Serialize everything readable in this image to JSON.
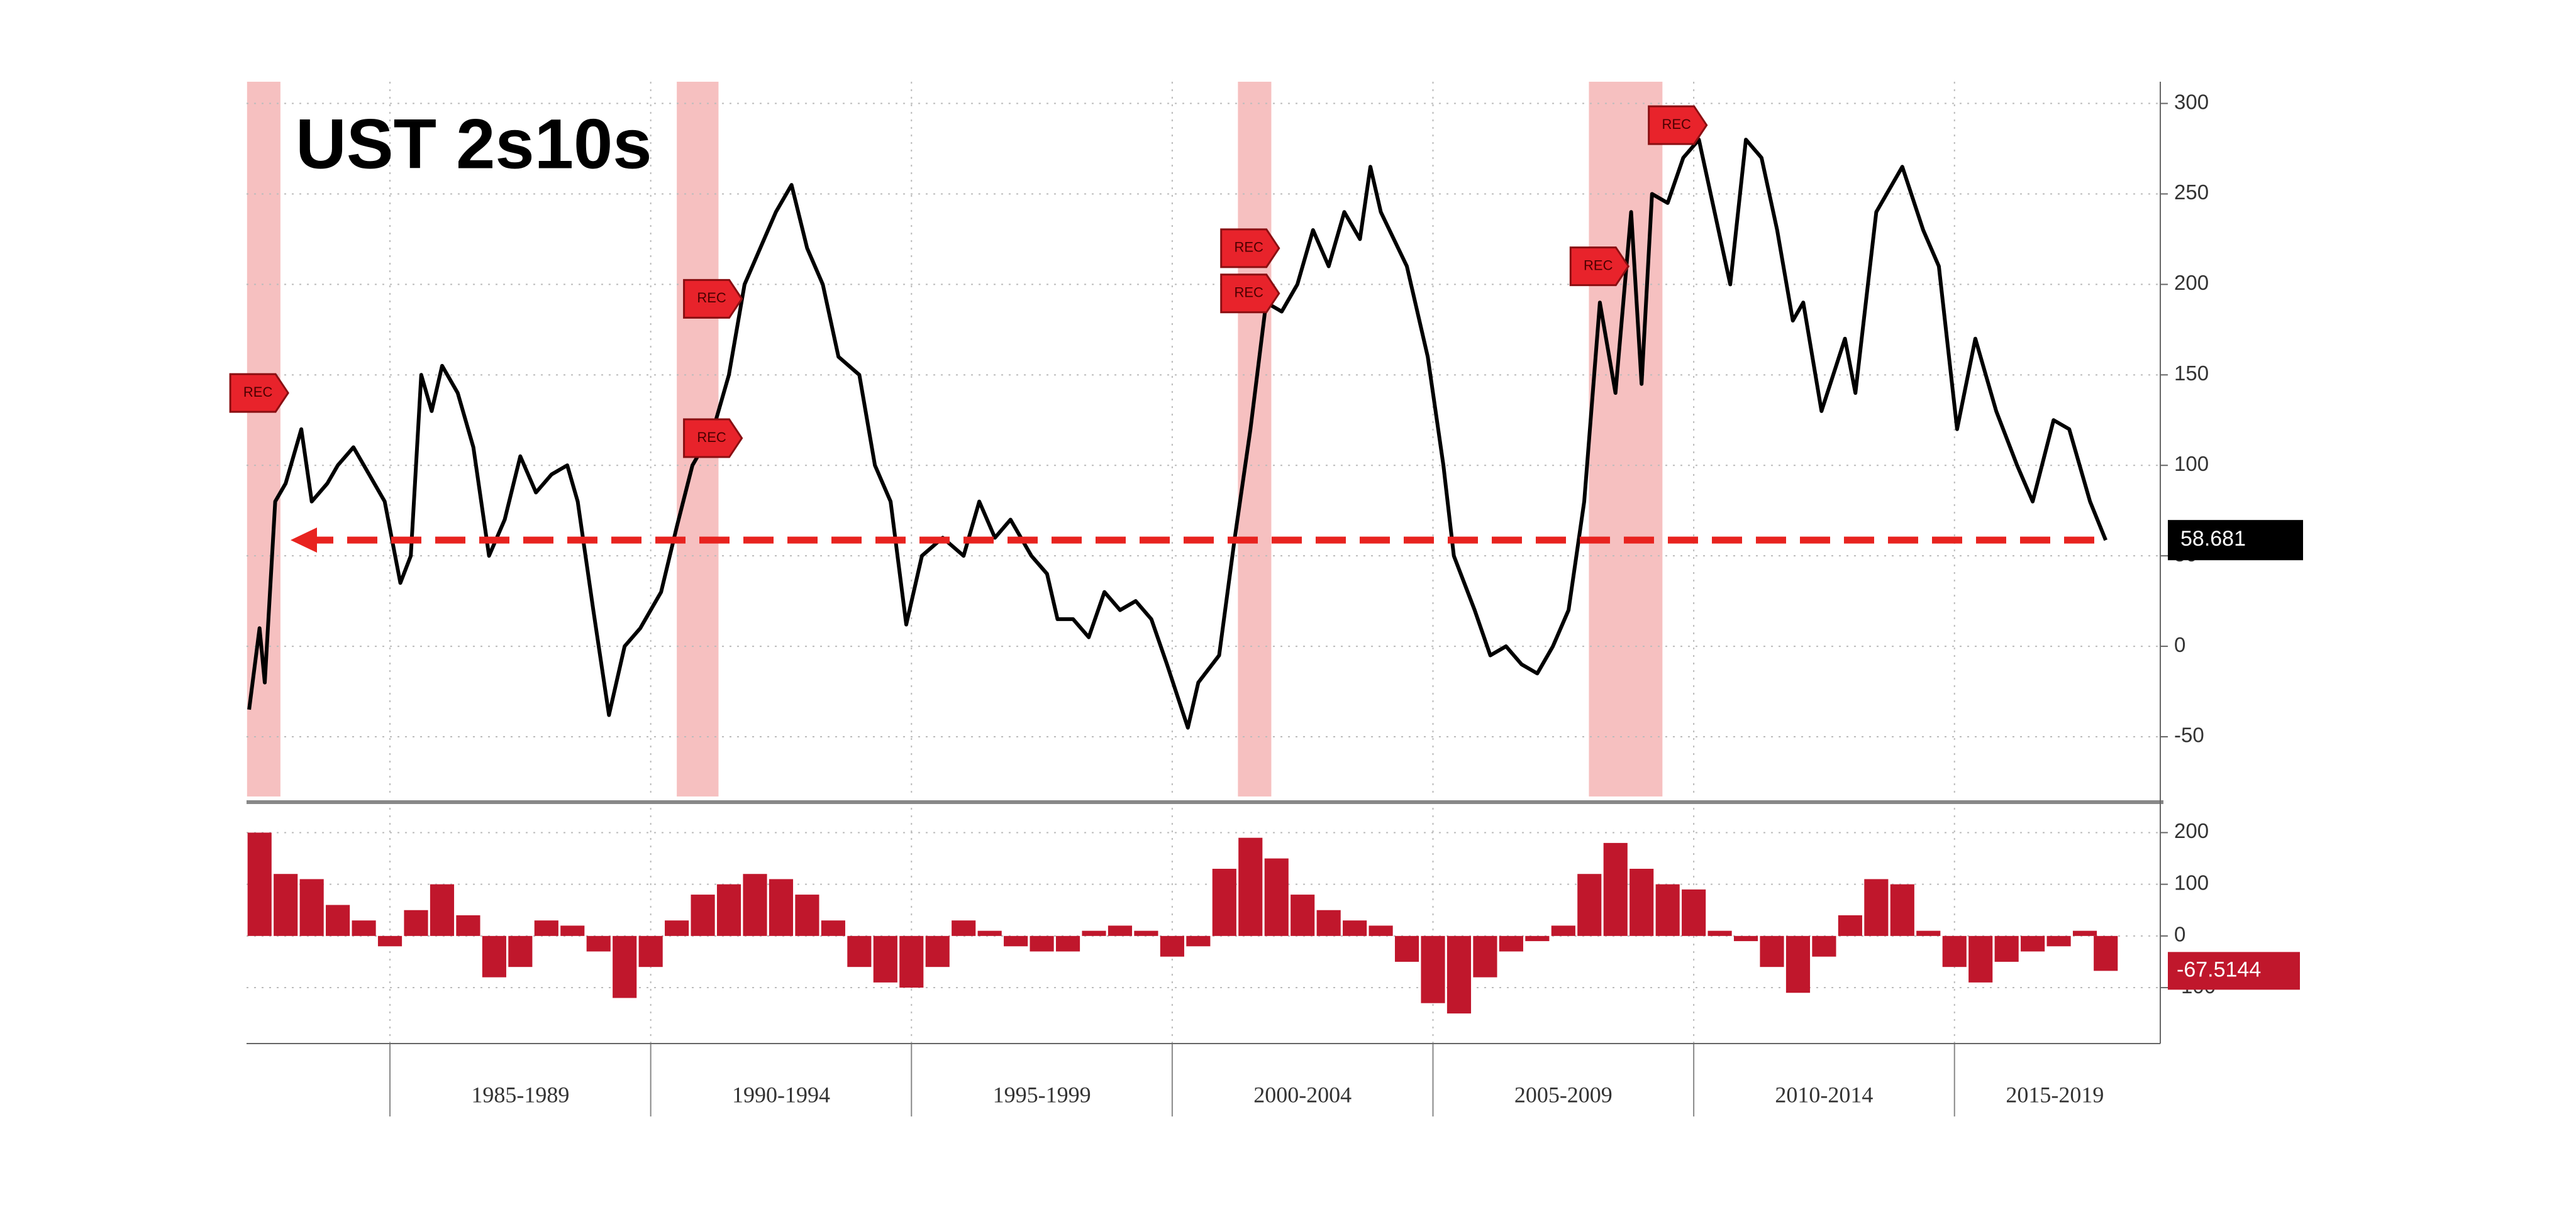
{
  "chart_data": [
    {
      "type": "line",
      "title": "UST 2s10s",
      "color": "#000000",
      "x": [
        1982.3,
        1982.5,
        1982.6,
        1982.8,
        1983.0,
        1983.3,
        1983.5,
        1983.8,
        1984.0,
        1984.3,
        1984.6,
        1984.9,
        1985.2,
        1985.4,
        1985.6,
        1985.8,
        1986.0,
        1986.3,
        1986.6,
        1986.9,
        1987.2,
        1987.5,
        1987.8,
        1988.1,
        1988.4,
        1988.6,
        1988.9,
        1989.2,
        1989.5,
        1989.8,
        1990.2,
        1990.5,
        1990.8,
        1991.2,
        1991.5,
        1991.8,
        1992.1,
        1992.4,
        1992.7,
        1993.0,
        1993.3,
        1993.6,
        1994.0,
        1994.3,
        1994.6,
        1994.9,
        1995.2,
        1995.6,
        1996.0,
        1996.3,
        1996.6,
        1996.9,
        1997.3,
        1997.6,
        1997.8,
        1998.1,
        1998.4,
        1998.7,
        1999.0,
        1999.3,
        1999.6,
        1999.9,
        2000.3,
        2000.5,
        2000.9,
        2001.2,
        2001.5,
        2001.8,
        2002.1,
        2002.4,
        2002.7,
        2003.0,
        2003.3,
        2003.6,
        2003.8,
        2004.0,
        2004.5,
        2004.9,
        2005.2,
        2005.4,
        2005.8,
        2006.1,
        2006.4,
        2006.7,
        2007.0,
        2007.3,
        2007.6,
        2007.9,
        2008.2,
        2008.5,
        2008.8,
        2009.0,
        2009.2,
        2009.5,
        2009.8,
        2010.1,
        2010.4,
        2010.7,
        2011.0,
        2011.3,
        2011.6,
        2011.9,
        2012.1,
        2012.45,
        2012.9,
        2013.1,
        2013.5,
        2014.0,
        2014.4,
        2014.7,
        2015.05,
        2015.4,
        2015.8,
        2016.2,
        2016.5,
        2016.9,
        2017.2,
        2017.6,
        2017.9
      ],
      "values": [
        -35,
        10,
        -20,
        80,
        90,
        120,
        80,
        90,
        100,
        110,
        95,
        80,
        35,
        50,
        150,
        130,
        155,
        140,
        110,
        50,
        70,
        105,
        85,
        95,
        100,
        80,
        20,
        -38,
        0,
        10,
        30,
        66,
        100,
        120,
        150,
        200,
        220,
        240,
        255,
        220,
        200,
        160,
        150,
        100,
        80,
        12,
        50,
        60,
        50,
        80,
        60,
        70,
        50,
        40,
        15,
        15,
        5,
        30,
        20,
        25,
        15,
        -10,
        -45,
        -20,
        -5,
        60,
        120,
        190,
        185,
        200,
        230,
        210,
        240,
        225,
        265,
        240,
        210,
        160,
        100,
        50,
        20,
        -5,
        0,
        -10,
        -15,
        0,
        20,
        80,
        190,
        140,
        240,
        145,
        250,
        245,
        270,
        280,
        240,
        200,
        280,
        270,
        230,
        180,
        190,
        130,
        170,
        140,
        240,
        265,
        230,
        210,
        120,
        170,
        130,
        100,
        80,
        125,
        120,
        80,
        58.681
      ],
      "last_value": 58.681,
      "reference_color": "#e8231f",
      "recessions": [
        [
          1982.26,
          1982.9
        ],
        [
          1990.5,
          1991.3
        ],
        [
          2001.26,
          2001.9
        ],
        [
          2007.99,
          2009.4
        ]
      ],
      "recession_color": "#f6c0c0",
      "annotations": [
        {
          "x": 1982.3,
          "y": 140,
          "text": "REC"
        },
        {
          "x": 1991.0,
          "y": 192,
          "text": "REC"
        },
        {
          "x": 1991.0,
          "y": 115,
          "text": "REC"
        },
        {
          "x": 2001.3,
          "y": 220,
          "text": "REC"
        },
        {
          "x": 2001.3,
          "y": 195,
          "text": "REC"
        },
        {
          "x": 2008.0,
          "y": 210,
          "text": "REC"
        },
        {
          "x": 2009.5,
          "y": 288,
          "text": "REC"
        }
      ],
      "xlim": [
        1982.25,
        2018.85
      ],
      "ylim": [
        -83,
        312
      ],
      "yticks": [
        -50,
        0,
        50,
        100,
        150,
        200,
        250,
        300
      ],
      "grid": true
    },
    {
      "type": "bar",
      "color": "#c0172c",
      "x": [
        1982.5,
        1983,
        1983.5,
        1984,
        1984.5,
        1985,
        1985.5,
        1986,
        1986.5,
        1987,
        1987.5,
        1988,
        1988.5,
        1989,
        1989.5,
        1990,
        1990.5,
        1991,
        1991.5,
        1992,
        1992.5,
        1993,
        1993.5,
        1994,
        1994.5,
        1995,
        1995.5,
        1996,
        1996.5,
        1997,
        1997.5,
        1998,
        1998.5,
        1999,
        1999.5,
        2000,
        2000.5,
        2001,
        2001.5,
        2002,
        2002.5,
        2003,
        2003.5,
        2004,
        2004.5,
        2005,
        2005.5,
        2006,
        2006.5,
        2007,
        2007.5,
        2008,
        2008.5,
        2009,
        2009.5,
        2010,
        2010.5,
        2011,
        2011.5,
        2012,
        2012.5,
        2013,
        2013.5,
        2014,
        2014.5,
        2015,
        2015.5,
        2016,
        2016.5,
        2017,
        2017.5,
        2017.9
      ],
      "values": [
        200,
        120,
        110,
        60,
        30,
        -20,
        50,
        100,
        40,
        -80,
        -60,
        30,
        20,
        -30,
        -120,
        -60,
        30,
        80,
        100,
        120,
        110,
        80,
        30,
        -60,
        -90,
        -100,
        -60,
        30,
        10,
        -20,
        -30,
        -30,
        10,
        20,
        10,
        -40,
        -20,
        130,
        190,
        150,
        80,
        50,
        30,
        20,
        -50,
        -130,
        -150,
        -80,
        -30,
        -10,
        20,
        120,
        180,
        130,
        100,
        90,
        10,
        -10,
        -60,
        -110,
        -40,
        40,
        110,
        100,
        10,
        -60,
        -90,
        -50,
        -30,
        -20,
        10,
        -67.5144
      ],
      "last_value": -67.5144,
      "xlim": [
        1982.25,
        2018.85
      ],
      "ylim": [
        -207,
        248
      ],
      "yticks": [
        -100,
        0,
        100,
        200
      ],
      "grid": true,
      "xticks": [
        1985,
        1990,
        1995,
        2000,
        2005,
        2010,
        2015
      ],
      "period_labels": [
        "1985-1989",
        "1990-1994",
        "1995-1999",
        "2000-2004",
        "2005-2009",
        "2010-2014",
        "2015-2019"
      ]
    }
  ]
}
